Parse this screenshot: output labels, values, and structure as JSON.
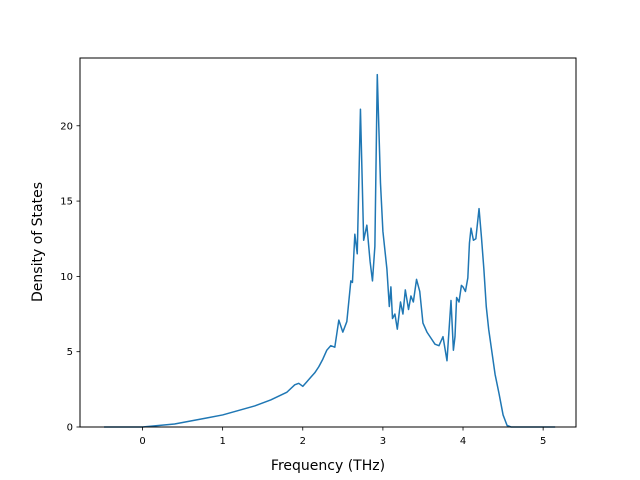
{
  "chart_data": {
    "type": "line",
    "title": "",
    "xlabel": "Frequency (THz)",
    "ylabel": "Density of States",
    "xlim": [
      -0.78,
      5.41
    ],
    "ylim": [
      0,
      24.5
    ],
    "xticks": [
      0,
      1,
      2,
      3,
      4,
      5
    ],
    "yticks": [
      0,
      5,
      10,
      15,
      20
    ],
    "grid": false,
    "legend": "none",
    "line_color": "#1f77b4",
    "series": [
      {
        "x": [
          -0.48,
          -0.2,
          0.0,
          0.2,
          0.4,
          0.6,
          0.8,
          1.0,
          1.2,
          1.4,
          1.6,
          1.8,
          1.9,
          1.95,
          2.0,
          2.05,
          2.1,
          2.15,
          2.2,
          2.25,
          2.3,
          2.35,
          2.4,
          2.45,
          2.5,
          2.55,
          2.6,
          2.62,
          2.65,
          2.68,
          2.72,
          2.76,
          2.8,
          2.84,
          2.87,
          2.9,
          2.93,
          2.97,
          3.0,
          3.05,
          3.08,
          3.1,
          3.12,
          3.15,
          3.18,
          3.22,
          3.25,
          3.28,
          3.32,
          3.35,
          3.38,
          3.42,
          3.46,
          3.5,
          3.55,
          3.6,
          3.65,
          3.7,
          3.75,
          3.8,
          3.85,
          3.88,
          3.9,
          3.92,
          3.95,
          3.98,
          4.0,
          4.03,
          4.06,
          4.08,
          4.1,
          4.13,
          4.16,
          4.2,
          4.23,
          4.26,
          4.29,
          4.32,
          4.36,
          4.4,
          4.45,
          4.5,
          4.55,
          4.6,
          4.63,
          4.66,
          4.7,
          5.0,
          5.15
        ],
        "y": [
          0.0,
          0.0,
          0.0,
          0.1,
          0.2,
          0.4,
          0.6,
          0.8,
          1.1,
          1.4,
          1.8,
          2.3,
          2.8,
          2.9,
          2.7,
          3.0,
          3.3,
          3.6,
          4.0,
          4.5,
          5.1,
          5.4,
          5.3,
          7.1,
          6.3,
          7.0,
          9.7,
          9.6,
          12.8,
          11.5,
          21.1,
          12.4,
          13.4,
          11.0,
          9.7,
          12.0,
          23.4,
          16.2,
          13.0,
          10.5,
          8.0,
          9.3,
          7.2,
          7.5,
          6.5,
          8.3,
          7.5,
          9.1,
          7.8,
          8.7,
          8.3,
          9.8,
          9.0,
          6.9,
          6.3,
          5.9,
          5.5,
          5.4,
          6.0,
          4.4,
          8.4,
          5.1,
          6.0,
          8.6,
          8.3,
          9.4,
          9.3,
          9.0,
          9.9,
          12.2,
          13.2,
          12.4,
          12.5,
          14.5,
          12.6,
          10.5,
          8.0,
          6.5,
          5.0,
          3.5,
          2.2,
          0.8,
          0.1,
          0.0,
          0.0,
          0.0,
          0.0,
          0.0,
          0.0
        ]
      }
    ]
  }
}
